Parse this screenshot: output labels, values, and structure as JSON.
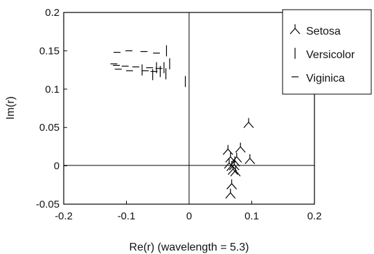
{
  "chart_data": {
    "type": "scatter",
    "title": "",
    "xlabel": "Re(r) (wavelength = 5.3)",
    "ylabel": "Im(r)",
    "xlim": [
      -0.2,
      0.2
    ],
    "ylim": [
      -0.05,
      0.2
    ],
    "x_ticks": [
      -0.2,
      -0.1,
      0,
      0.1,
      0.2
    ],
    "x_tick_labels": [
      "-0.2",
      "-0.1",
      "0",
      "0.1",
      "0.2"
    ],
    "y_ticks": [
      -0.05,
      0,
      0.05,
      0.1,
      0.15,
      0.2
    ],
    "y_tick_labels": [
      "-0.05",
      "0",
      "0.05",
      "0.1",
      "0.15",
      "0.2"
    ],
    "grid": false,
    "zero_lines": true,
    "legend_position": "top-right",
    "series": [
      {
        "name": "Setosa",
        "marker": "caret-up",
        "points": [
          [
            0.095,
            0.055
          ],
          [
            0.082,
            0.023
          ],
          [
            0.097,
            0.008
          ],
          [
            0.062,
            0.02
          ],
          [
            0.066,
            0.01
          ],
          [
            0.064,
            0.002
          ],
          [
            0.068,
            -0.001
          ],
          [
            0.073,
            0.005
          ],
          [
            0.072,
            0.0
          ],
          [
            0.076,
            0.01
          ],
          [
            0.07,
            -0.006
          ],
          [
            0.074,
            -0.008
          ],
          [
            0.068,
            -0.025
          ],
          [
            0.066,
            -0.037
          ]
        ]
      },
      {
        "name": "Versicolor",
        "marker": "vline",
        "points": [
          [
            -0.036,
            0.15
          ],
          [
            -0.031,
            0.133
          ],
          [
            -0.04,
            0.128
          ],
          [
            -0.046,
            0.123
          ],
          [
            -0.052,
            0.128
          ],
          [
            -0.037,
            0.12
          ],
          [
            -0.058,
            0.119
          ],
          [
            -0.075,
            0.125
          ],
          [
            -0.006,
            0.11
          ]
        ]
      },
      {
        "name": "Viginica",
        "marker": "hline",
        "points": [
          [
            -0.115,
            0.148
          ],
          [
            -0.096,
            0.15
          ],
          [
            -0.072,
            0.149
          ],
          [
            -0.052,
            0.147
          ],
          [
            -0.12,
            0.133
          ],
          [
            -0.116,
            0.131
          ],
          [
            -0.102,
            0.13
          ],
          [
            -0.085,
            0.129
          ],
          [
            -0.063,
            0.128
          ],
          [
            -0.048,
            0.127
          ],
          [
            -0.113,
            0.126
          ],
          [
            -0.095,
            0.124
          ],
          [
            -0.07,
            0.124
          ],
          [
            -0.056,
            0.123
          ]
        ]
      }
    ]
  }
}
